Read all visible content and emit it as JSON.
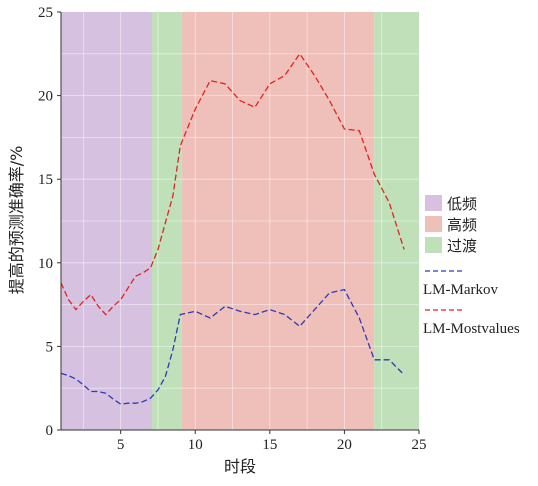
{
  "chart_data": {
    "type": "line",
    "xlabel": "时段",
    "ylabel": "提高的预测准确率/%",
    "xlim": [
      1,
      25
    ],
    "ylim": [
      0,
      25
    ],
    "xticks": [
      5,
      10,
      15,
      20,
      25
    ],
    "yticks": [
      0,
      5,
      10,
      15,
      20,
      25
    ],
    "grid": true,
    "legend_position": "right",
    "regions": [
      {
        "name": "低频",
        "start": 1,
        "end": 7.1,
        "color": "#d6c1e0"
      },
      {
        "name": "过渡",
        "start": 7.1,
        "end": 9.1,
        "color": "#bfe0b8"
      },
      {
        "name": "高频",
        "start": 9.1,
        "end": 22,
        "color": "#efbfba"
      },
      {
        "name": "过渡",
        "start": 22,
        "end": 25,
        "color": "#bfe0b8"
      }
    ],
    "region_legend": [
      {
        "name": "低频",
        "color": "#d6c1e0"
      },
      {
        "name": "高频",
        "color": "#efbfba"
      },
      {
        "name": "过渡",
        "color": "#bfe0b8"
      }
    ],
    "series": [
      {
        "name": "LM-Markov",
        "color": "#2b3cb5",
        "x": [
          1,
          1.5,
          2,
          2.5,
          3,
          3.5,
          4,
          4.5,
          5,
          5.5,
          6,
          6.5,
          7,
          7.5,
          8,
          8.5,
          9,
          10,
          11,
          12,
          13,
          14,
          15,
          16,
          17,
          18,
          19,
          20,
          21,
          22,
          23,
          24
        ],
        "values": [
          3.4,
          3.25,
          3.05,
          2.7,
          2.3,
          2.3,
          2.2,
          1.85,
          1.55,
          1.6,
          1.6,
          1.7,
          1.9,
          2.4,
          3.2,
          4.8,
          6.9,
          7.1,
          6.7,
          7.4,
          7.1,
          6.9,
          7.2,
          6.9,
          6.2,
          7.2,
          8.2,
          8.4,
          6.7,
          4.2,
          4.2,
          3.3
        ]
      },
      {
        "name": "LM-Mostvalues",
        "color": "#e0241d",
        "x": [
          1,
          1.5,
          2,
          2.5,
          3,
          3.5,
          4,
          4.5,
          5,
          5.5,
          6,
          6.5,
          7,
          7.5,
          8,
          8.5,
          9,
          10,
          11,
          12,
          13,
          14,
          15,
          16,
          17,
          18,
          19,
          20,
          21,
          22,
          23,
          24
        ],
        "values": [
          8.8,
          7.8,
          7.2,
          7.7,
          8.1,
          7.4,
          6.9,
          7.4,
          7.8,
          8.5,
          9.2,
          9.4,
          9.7,
          10.8,
          12.4,
          14.0,
          17.0,
          19.2,
          20.9,
          20.7,
          19.7,
          19.3,
          20.7,
          21.2,
          22.5,
          21.2,
          19.7,
          18.0,
          17.9,
          15.3,
          13.6,
          10.8
        ]
      }
    ],
    "annotations": []
  }
}
